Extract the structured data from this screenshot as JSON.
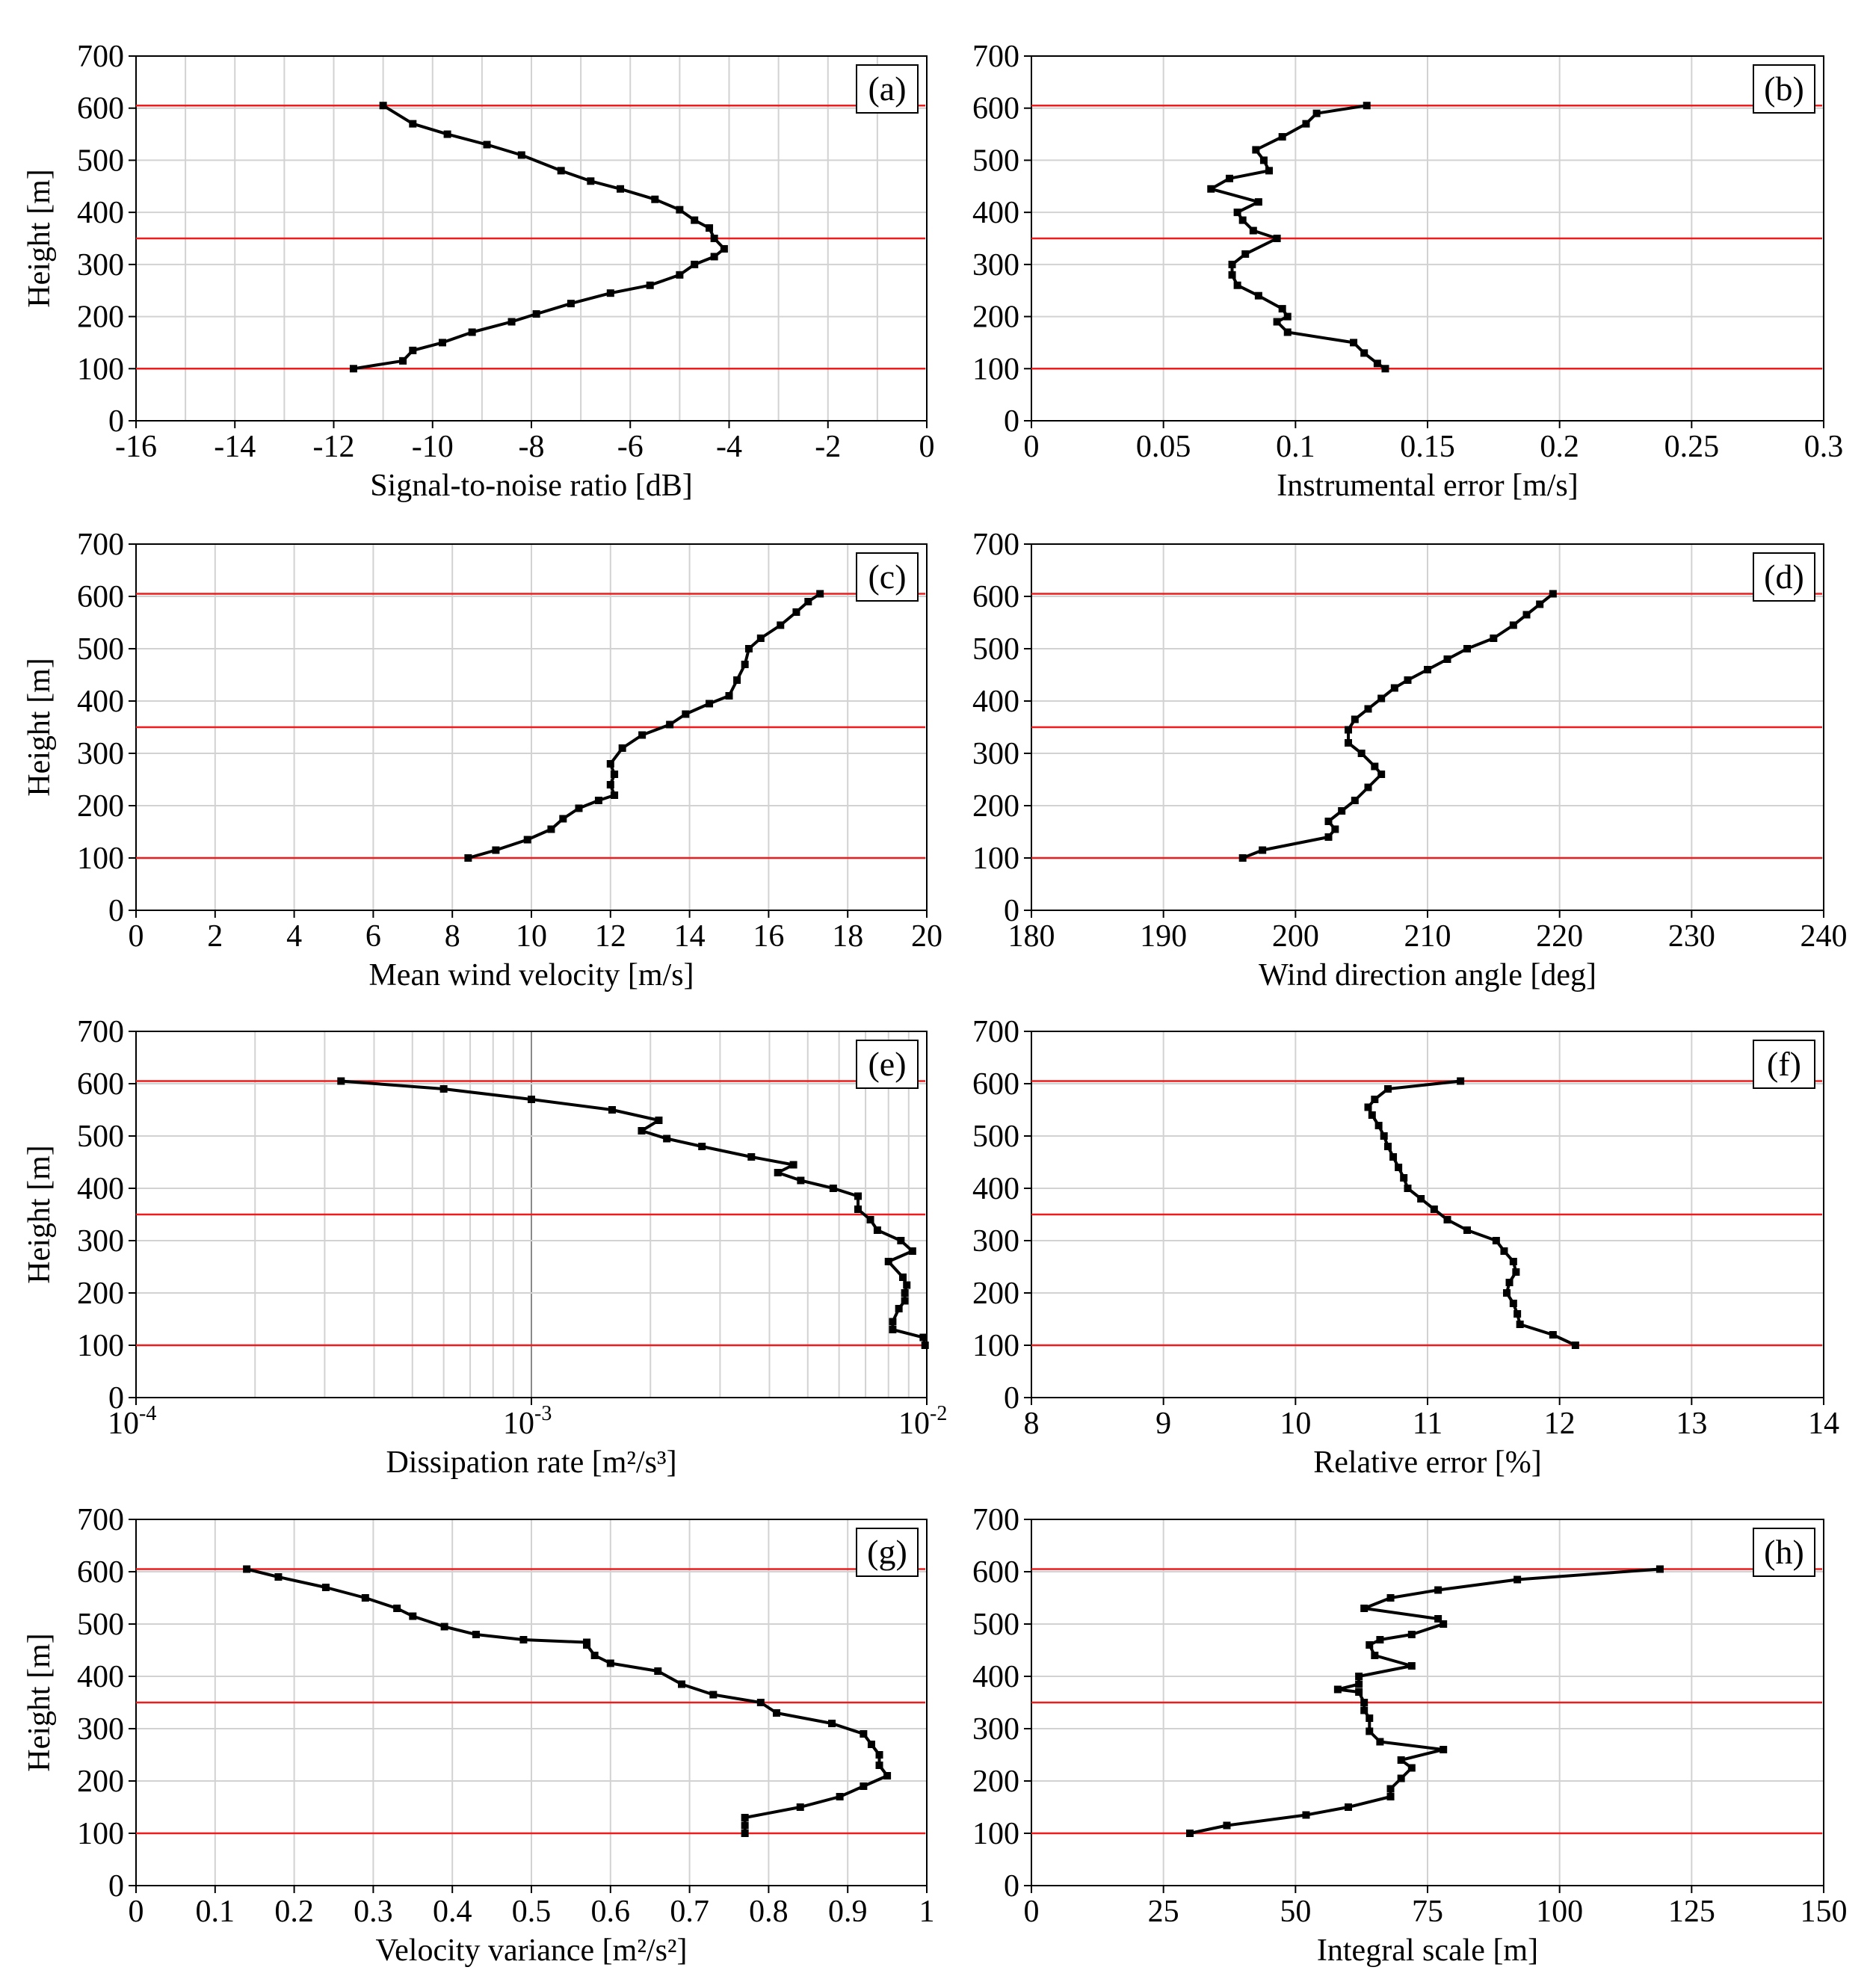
{
  "chart_data": [
    {
      "panel": "(a)",
      "type": "line",
      "xscale": "linear",
      "xlabel": "Signal-to-noise ratio [dB]",
      "ylabel": "Height [m]",
      "xlim": [
        -16,
        0
      ],
      "ylim": [
        0,
        700
      ],
      "xticks": [
        -16,
        -14,
        -12,
        -10,
        -8,
        -6,
        -4,
        -2,
        0
      ],
      "xtick_labels": [
        "-16",
        "-14",
        "-12",
        "-10",
        "-8",
        "-6",
        "-4",
        "-2",
        "0"
      ],
      "yticks": [
        0,
        100,
        200,
        300,
        400,
        500,
        600,
        700
      ],
      "ytick_labels": [
        "0",
        "100",
        "200",
        "300",
        "400",
        "500",
        "600",
        "700"
      ],
      "xgrid": [
        -16,
        -15,
        -14,
        -13,
        -12,
        -11,
        -10,
        -9,
        -8,
        -7,
        -6,
        -5,
        -4,
        -3,
        -2,
        -1,
        0
      ],
      "reference_lines": [
        100,
        350,
        605
      ],
      "series": [
        {
          "name": "profile",
          "x": [
            -11.6,
            -10.6,
            -10.4,
            -9.8,
            -9.2,
            -8.4,
            -7.9,
            -7.2,
            -6.4,
            -5.6,
            -5.0,
            -4.7,
            -4.3,
            -4.1,
            -4.3,
            -4.4,
            -4.7,
            -5.0,
            -5.5,
            -6.2,
            -6.8,
            -7.4,
            -8.2,
            -8.9,
            -9.7,
            -10.4,
            -11.0
          ],
          "y": [
            100,
            115,
            135,
            150,
            170,
            190,
            205,
            225,
            245,
            260,
            280,
            300,
            315,
            330,
            350,
            370,
            385,
            405,
            425,
            445,
            460,
            480,
            510,
            530,
            550,
            570,
            605
          ]
        }
      ]
    },
    {
      "panel": "(b)",
      "type": "line",
      "xscale": "linear",
      "xlabel": "Instrumental error [m/s]",
      "ylabel": "",
      "xlim": [
        0,
        0.3
      ],
      "ylim": [
        0,
        700
      ],
      "xticks": [
        0,
        0.05,
        0.1,
        0.15,
        0.2,
        0.25,
        0.3
      ],
      "xtick_labels": [
        "0",
        "0.05",
        "0.1",
        "0.15",
        "0.2",
        "0.25",
        "0.3"
      ],
      "yticks": [
        0,
        100,
        200,
        300,
        400,
        500,
        600,
        700
      ],
      "ytick_labels": [
        "0",
        "100",
        "200",
        "300",
        "400",
        "500",
        "600",
        "700"
      ],
      "xgrid": [
        0,
        0.05,
        0.1,
        0.15,
        0.2,
        0.25,
        0.3
      ],
      "reference_lines": [
        100,
        350,
        605
      ],
      "series": [
        {
          "name": "profile",
          "x": [
            0.134,
            0.131,
            0.126,
            0.122,
            0.097,
            0.093,
            0.097,
            0.095,
            0.086,
            0.078,
            0.076,
            0.076,
            0.081,
            0.093,
            0.084,
            0.08,
            0.078,
            0.086,
            0.068,
            0.075,
            0.09,
            0.088,
            0.085,
            0.095,
            0.104,
            0.108,
            0.127
          ],
          "y": [
            100,
            110,
            130,
            150,
            170,
            190,
            200,
            215,
            240,
            260,
            280,
            300,
            320,
            350,
            365,
            385,
            400,
            420,
            445,
            465,
            480,
            500,
            520,
            545,
            570,
            590,
            605
          ]
        }
      ]
    },
    {
      "panel": "(c)",
      "type": "line",
      "xscale": "linear",
      "xlabel": "Mean wind velocity [m/s]",
      "ylabel": "Height [m]",
      "xlim": [
        0,
        20
      ],
      "ylim": [
        0,
        700
      ],
      "xticks": [
        0,
        2,
        4,
        6,
        8,
        10,
        12,
        14,
        16,
        18,
        20
      ],
      "xtick_labels": [
        "0",
        "2",
        "4",
        "6",
        "8",
        "10",
        "12",
        "14",
        "16",
        "18",
        "20"
      ],
      "yticks": [
        0,
        100,
        200,
        300,
        400,
        500,
        600,
        700
      ],
      "ytick_labels": [
        "0",
        "100",
        "200",
        "300",
        "400",
        "500",
        "600",
        "700"
      ],
      "xgrid": [
        0,
        2,
        4,
        6,
        8,
        10,
        12,
        14,
        16,
        18,
        20
      ],
      "reference_lines": [
        100,
        350,
        605
      ],
      "series": [
        {
          "name": "profile",
          "x": [
            8.4,
            9.1,
            9.9,
            10.5,
            10.8,
            11.2,
            11.7,
            12.1,
            12.0,
            12.1,
            12.0,
            12.3,
            12.8,
            13.5,
            13.9,
            14.5,
            15.0,
            15.2,
            15.4,
            15.5,
            15.8,
            16.3,
            16.7,
            17.0,
            17.3
          ],
          "y": [
            100,
            115,
            135,
            155,
            175,
            195,
            210,
            220,
            240,
            260,
            280,
            310,
            335,
            355,
            375,
            395,
            410,
            440,
            470,
            500,
            520,
            545,
            570,
            590,
            605
          ]
        }
      ]
    },
    {
      "panel": "(d)",
      "type": "line",
      "xscale": "linear",
      "xlabel": "Wind direction angle [deg]",
      "ylabel": "",
      "xlim": [
        180,
        240
      ],
      "ylim": [
        0,
        700
      ],
      "xticks": [
        180,
        190,
        200,
        210,
        220,
        230,
        240
      ],
      "xtick_labels": [
        "180",
        "190",
        "200",
        "210",
        "220",
        "230",
        "240"
      ],
      "yticks": [
        0,
        100,
        200,
        300,
        400,
        500,
        600,
        700
      ],
      "ytick_labels": [
        "0",
        "100",
        "200",
        "300",
        "400",
        "500",
        "600",
        "700"
      ],
      "xgrid": [
        180,
        190,
        200,
        210,
        220,
        230,
        240
      ],
      "reference_lines": [
        100,
        350,
        605
      ],
      "series": [
        {
          "name": "profile",
          "x": [
            196.0,
            197.5,
            202.5,
            203.0,
            202.5,
            203.5,
            204.5,
            205.5,
            206.5,
            206.0,
            205.0,
            204.0,
            204.0,
            204.5,
            205.5,
            206.5,
            207.5,
            208.5,
            210.0,
            211.5,
            213.0,
            215.0,
            216.5,
            217.5,
            218.5,
            219.5
          ],
          "y": [
            100,
            115,
            140,
            155,
            170,
            190,
            210,
            235,
            260,
            275,
            300,
            320,
            345,
            365,
            385,
            405,
            425,
            440,
            460,
            480,
            500,
            520,
            545,
            565,
            585,
            605
          ]
        }
      ]
    },
    {
      "panel": "(e)",
      "type": "line",
      "xscale": "log",
      "xlabel": "Dissipation rate [m²/s³]",
      "ylabel": "Height [m]",
      "xlim": [
        0.0001,
        0.01
      ],
      "ylim": [
        0,
        700
      ],
      "xticks": [
        0.0001,
        0.001,
        0.01
      ],
      "xtick_labels": [
        "10",
        "10",
        "10"
      ],
      "xtick_exponents": [
        "-4",
        "-3",
        "-2"
      ],
      "yticks": [
        0,
        100,
        200,
        300,
        400,
        500,
        600,
        700
      ],
      "ytick_labels": [
        "0",
        "100",
        "200",
        "300",
        "400",
        "500",
        "600",
        "700"
      ],
      "xgrid": [
        0.0001,
        0.0002,
        0.0003,
        0.0004,
        0.0005,
        0.0006,
        0.0007,
        0.0008,
        0.0009,
        0.001,
        0.002,
        0.003,
        0.004,
        0.005,
        0.006,
        0.007,
        0.008,
        0.009,
        0.01
      ],
      "reference_lines": [
        100,
        350,
        605
      ],
      "series": [
        {
          "name": "profile",
          "x": [
            0.0099,
            0.0098,
            0.0082,
            0.0082,
            0.0085,
            0.0088,
            0.0088,
            0.0089,
            0.0087,
            0.008,
            0.0092,
            0.0086,
            0.0075,
            0.0072,
            0.0067,
            0.0067,
            0.0058,
            0.0048,
            0.0042,
            0.0046,
            0.0036,
            0.0027,
            0.0022,
            0.0019,
            0.0021,
            0.0016,
            0.001,
            0.0006,
            0.00033
          ],
          "y": [
            100,
            115,
            130,
            145,
            170,
            185,
            200,
            215,
            230,
            260,
            280,
            300,
            320,
            340,
            360,
            385,
            400,
            415,
            430,
            445,
            460,
            480,
            495,
            510,
            530,
            550,
            570,
            590,
            605
          ]
        }
      ]
    },
    {
      "panel": "(f)",
      "type": "line",
      "xscale": "linear",
      "xlabel": "Relative error [%]",
      "ylabel": "",
      "xlim": [
        8,
        14
      ],
      "ylim": [
        0,
        700
      ],
      "xticks": [
        8,
        9,
        10,
        11,
        12,
        13,
        14
      ],
      "xtick_labels": [
        "8",
        "9",
        "10",
        "11",
        "12",
        "13",
        "14"
      ],
      "xgrid": [
        8,
        9,
        10,
        11,
        12,
        13,
        14
      ],
      "yticks": [
        0,
        100,
        200,
        300,
        400,
        500,
        600,
        700
      ],
      "ytick_labels": [
        "0",
        "100",
        "200",
        "300",
        "400",
        "500",
        "600",
        "700"
      ],
      "reference_lines": [
        100,
        350,
        605
      ],
      "series": [
        {
          "name": "profile",
          "x": [
            12.12,
            11.95,
            11.7,
            11.68,
            11.65,
            11.6,
            11.62,
            11.67,
            11.65,
            11.58,
            11.52,
            11.3,
            11.15,
            11.05,
            10.95,
            10.85,
            10.82,
            10.78,
            10.74,
            10.7,
            10.67,
            10.63,
            10.58,
            10.55,
            10.6,
            10.7,
            11.25
          ],
          "y": [
            100,
            120,
            140,
            160,
            180,
            200,
            220,
            240,
            260,
            280,
            300,
            320,
            340,
            360,
            380,
            400,
            420,
            440,
            460,
            480,
            500,
            520,
            540,
            555,
            570,
            590,
            605
          ]
        }
      ]
    },
    {
      "panel": "(g)",
      "type": "line",
      "xscale": "linear",
      "xlabel": "Velocity variance [m²/s²]",
      "ylabel": "Height [m]",
      "xlim": [
        0,
        1
      ],
      "ylim": [
        0,
        700
      ],
      "xticks": [
        0,
        0.1,
        0.2,
        0.3,
        0.4,
        0.5,
        0.6,
        0.7,
        0.8,
        0.9,
        1
      ],
      "xtick_labels": [
        "0",
        "0.1",
        "0.2",
        "0.3",
        "0.4",
        "0.5",
        "0.6",
        "0.7",
        "0.8",
        "0.9",
        "1"
      ],
      "xgrid": [
        0,
        0.1,
        0.2,
        0.3,
        0.4,
        0.5,
        0.6,
        0.7,
        0.8,
        0.9,
        1
      ],
      "yticks": [
        0,
        100,
        200,
        300,
        400,
        500,
        600,
        700
      ],
      "ytick_labels": [
        "0",
        "100",
        "200",
        "300",
        "400",
        "500",
        "600",
        "700"
      ],
      "reference_lines": [
        100,
        350,
        605
      ],
      "series": [
        {
          "name": "profile",
          "x": [
            0.77,
            0.77,
            0.77,
            0.84,
            0.89,
            0.92,
            0.95,
            0.94,
            0.94,
            0.93,
            0.92,
            0.88,
            0.81,
            0.79,
            0.73,
            0.69,
            0.66,
            0.6,
            0.58,
            0.57,
            0.57,
            0.49,
            0.43,
            0.39,
            0.35,
            0.33,
            0.29,
            0.24,
            0.18,
            0.14
          ],
          "y": [
            100,
            115,
            130,
            150,
            170,
            190,
            210,
            230,
            250,
            270,
            290,
            310,
            330,
            350,
            365,
            385,
            410,
            425,
            440,
            460,
            465,
            470,
            480,
            495,
            515,
            530,
            550,
            570,
            590,
            605
          ]
        }
      ]
    },
    {
      "panel": "(h)",
      "type": "line",
      "xscale": "linear",
      "xlabel": "Integral scale [m]",
      "ylabel": "",
      "xlim": [
        0,
        150
      ],
      "ylim": [
        0,
        700
      ],
      "xticks": [
        0,
        25,
        50,
        75,
        100,
        125,
        150
      ],
      "xtick_labels": [
        "0",
        "25",
        "50",
        "75",
        "100",
        "125",
        "150"
      ],
      "xgrid": [
        0,
        25,
        50,
        75,
        100,
        125,
        150
      ],
      "yticks": [
        0,
        100,
        200,
        300,
        400,
        500,
        600,
        700
      ],
      "ytick_labels": [
        "0",
        "100",
        "200",
        "300",
        "400",
        "500",
        "600",
        "700"
      ],
      "reference_lines": [
        100,
        350,
        605
      ],
      "series": [
        {
          "name": "profile",
          "x": [
            30,
            37,
            52,
            60,
            68,
            68,
            70,
            72,
            70,
            78,
            66,
            64,
            64,
            63,
            63,
            62,
            58,
            62,
            62,
            72,
            65,
            64,
            66,
            72,
            78,
            77,
            63,
            68,
            77,
            92,
            119
          ],
          "y": [
            100,
            115,
            135,
            150,
            170,
            185,
            205,
            225,
            240,
            260,
            275,
            295,
            320,
            335,
            350,
            370,
            375,
            385,
            400,
            420,
            440,
            460,
            470,
            480,
            500,
            510,
            530,
            550,
            565,
            585,
            605
          ]
        }
      ]
    }
  ]
}
